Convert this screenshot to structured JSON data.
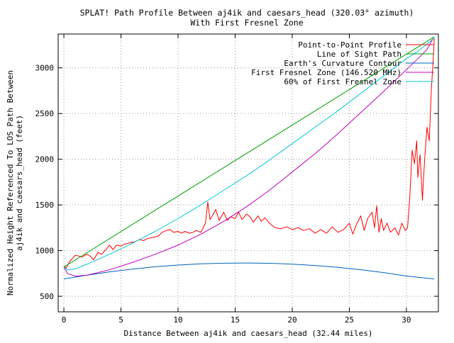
{
  "chart_data": {
    "type": "line",
    "title": "SPLAT! Path Profile Between aj4ik and caesars_head (320.03° azimuth)",
    "subtitle": "With First Fresnel Zone",
    "xlabel": "Distance Between aj4ik and caesars_head (32.44 miles)",
    "ylabel_line1": "Normalized Height Referenced To LOS Path Between",
    "ylabel_line2": "aj4ik and caesars_head (feet)",
    "xlim": [
      -0.5,
      32.8
    ],
    "ylim": [
      330,
      3370
    ],
    "xticks": [
      0,
      5,
      10,
      15,
      20,
      25,
      30
    ],
    "yticks": [
      500,
      1000,
      1500,
      2000,
      2500,
      3000
    ],
    "grid": true,
    "legend_position": "top-right",
    "series": [
      {
        "name": "Point-to-Point Profile",
        "color": "#ff0000",
        "x": [
          0,
          0.2,
          0.5,
          0.8,
          1.0,
          1.3,
          1.6,
          2.0,
          2.3,
          2.6,
          3.0,
          3.3,
          3.6,
          4.0,
          4.3,
          4.6,
          5.0,
          5.3,
          5.6,
          6.0,
          6.3,
          6.6,
          7.0,
          7.3,
          7.6,
          8.0,
          8.3,
          8.6,
          9.0,
          9.3,
          9.6,
          10.0,
          10.3,
          10.6,
          11.0,
          11.3,
          11.6,
          12.0,
          12.2,
          12.4,
          12.6,
          12.8,
          13.0,
          13.3,
          13.6,
          14.0,
          14.3,
          14.6,
          15.0,
          15.3,
          15.6,
          16.0,
          16.3,
          16.6,
          17.0,
          17.3,
          17.6,
          18.0,
          18.5,
          19.0,
          19.5,
          20.0,
          20.5,
          21.0,
          21.5,
          22.0,
          22.5,
          23.0,
          23.5,
          24.0,
          24.5,
          25.0,
          25.3,
          25.6,
          26.0,
          26.3,
          26.6,
          27.0,
          27.2,
          27.4,
          27.6,
          27.8,
          28.0,
          28.3,
          28.6,
          29.0,
          29.3,
          29.6,
          29.9,
          30.1,
          30.3,
          30.5,
          30.7,
          30.9,
          31.0,
          31.2,
          31.4,
          31.5,
          31.6,
          31.8,
          32.0,
          32.2,
          32.3,
          32.44
        ],
        "y": [
          830,
          810,
          880,
          920,
          950,
          940,
          930,
          960,
          940,
          900,
          980,
          960,
          1000,
          1060,
          1010,
          1060,
          1050,
          1070,
          1080,
          1090,
          1100,
          1120,
          1110,
          1130,
          1140,
          1150,
          1160,
          1200,
          1220,
          1230,
          1200,
          1210,
          1190,
          1210,
          1190,
          1200,
          1220,
          1200,
          1250,
          1300,
          1530,
          1340,
          1380,
          1450,
          1330,
          1420,
          1330,
          1370,
          1350,
          1420,
          1340,
          1400,
          1370,
          1310,
          1380,
          1320,
          1360,
          1300,
          1250,
          1240,
          1260,
          1230,
          1250,
          1220,
          1240,
          1190,
          1230,
          1190,
          1260,
          1200,
          1230,
          1300,
          1180,
          1280,
          1380,
          1220,
          1350,
          1420,
          1250,
          1490,
          1200,
          1350,
          1220,
          1300,
          1200,
          1250,
          1170,
          1300,
          1220,
          1250,
          1600,
          2100,
          1950,
          2200,
          1800,
          2050,
          1550,
          1800,
          2000,
          2350,
          2200,
          2800,
          3000,
          3320
        ]
      },
      {
        "name": "Line of Sight Path",
        "color": "#00a000",
        "x": [
          0,
          32.44
        ],
        "y": [
          820,
          3340
        ]
      },
      {
        "name": "Earth's Curvature Contour",
        "color": "#0060c0",
        "x": [
          0,
          2,
          4,
          6,
          8,
          10,
          12,
          14,
          16,
          18,
          20,
          22,
          24,
          26,
          28,
          30,
          32.44
        ],
        "y": [
          690,
          730,
          767,
          798,
          823,
          842,
          855,
          862,
          864,
          861,
          852,
          837,
          817,
          791,
          760,
          722,
          690
        ]
      },
      {
        "name": "First Fresnel Zone (146.520 MHz)",
        "color": "#c000c0",
        "x": [
          0,
          0.3,
          1,
          2,
          4,
          6,
          8,
          10,
          12,
          14,
          16,
          18,
          20,
          22,
          24,
          26,
          28,
          30,
          31,
          31.8,
          32.2,
          32.44
        ],
        "y": [
          820,
          750,
          720,
          730,
          790,
          870,
          960,
          1060,
          1180,
          1320,
          1480,
          1660,
          1860,
          2060,
          2280,
          2510,
          2740,
          2980,
          3100,
          3200,
          3290,
          3340
        ]
      },
      {
        "name": "60% of First Fresnel Zone",
        "color": "#00c8d8",
        "x": [
          0,
          0.3,
          1,
          2,
          4,
          6,
          8,
          10,
          12,
          14,
          16,
          18,
          20,
          22,
          24,
          26,
          28,
          30,
          31,
          31.8,
          32.2,
          32.44
        ],
        "y": [
          820,
          790,
          800,
          850,
          960,
          1080,
          1210,
          1350,
          1500,
          1660,
          1820,
          1990,
          2170,
          2350,
          2530,
          2720,
          2910,
          3100,
          3180,
          3260,
          3300,
          3340
        ]
      }
    ]
  }
}
